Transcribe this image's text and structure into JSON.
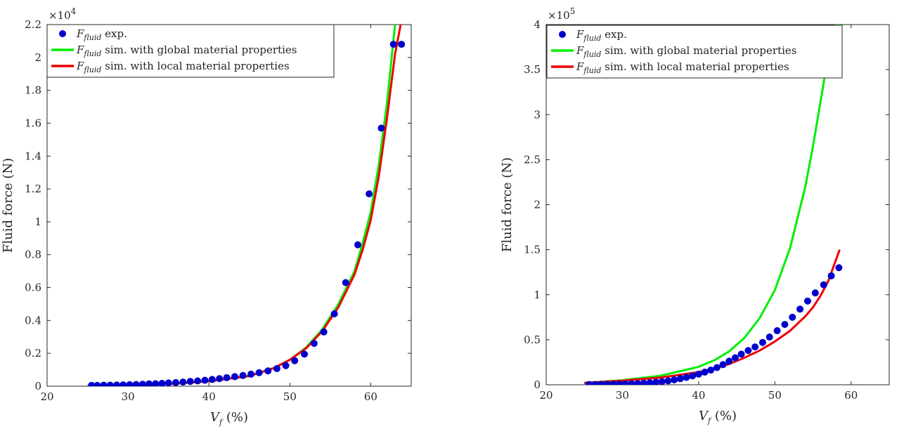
{
  "chart_data": [
    {
      "type": "scatter+line",
      "xlabel": {
        "var": "V",
        "sub": "f",
        "unit": " (%)"
      },
      "ylabel": "Fluid force (N)",
      "xlim": [
        20,
        65
      ],
      "ylim": [
        0,
        2.2
      ],
      "y_exponent": "4",
      "x_ticks": [
        20,
        30,
        40,
        50,
        60
      ],
      "x_tick_labels": [
        "20",
        "30",
        "40",
        "50",
        "60"
      ],
      "y_ticks": [
        0,
        0.2,
        0.4,
        0.6,
        0.8,
        1.0,
        1.2,
        1.4,
        1.6,
        1.8,
        2.0,
        2.2
      ],
      "y_tick_labels": [
        "0",
        "0.2",
        "0.4",
        "0.6",
        "0.8",
        "1",
        "1.2",
        "1.4",
        "1.6",
        "1.8",
        "2",
        "2.2"
      ],
      "grid": false,
      "legend": "top-left",
      "legend_entries": [
        {
          "main": "F",
          "sub": "fluid",
          "suffix": " exp.",
          "marker": "dot",
          "color": "#0000CC"
        },
        {
          "main": "F",
          "sub": "fluid",
          "suffix": " sim. with global material properties",
          "marker": "line",
          "color": "#00EE00"
        },
        {
          "main": "F",
          "sub": "fluid",
          "suffix": " sim. with local material properties",
          "marker": "line",
          "color": "#EE0000"
        }
      ],
      "series": [
        {
          "kind": "points",
          "color": "#0000CC",
          "x": [
            25.5,
            26.2,
            27.0,
            27.8,
            28.6,
            29.4,
            30.2,
            31.0,
            31.8,
            32.6,
            33.4,
            34.2,
            35.0,
            35.9,
            36.8,
            37.7,
            38.6,
            39.5,
            40.4,
            41.3,
            42.2,
            43.2,
            44.2,
            45.2,
            46.2,
            47.3,
            48.4,
            49.5,
            50.6,
            51.8,
            53.0,
            54.2,
            55.5,
            56.9,
            58.4,
            59.8,
            61.3,
            62.8,
            63.8
          ],
          "y": [
            0.005,
            0.005,
            0.006,
            0.006,
            0.007,
            0.008,
            0.009,
            0.01,
            0.012,
            0.014,
            0.015,
            0.017,
            0.02,
            0.022,
            0.025,
            0.029,
            0.032,
            0.036,
            0.041,
            0.046,
            0.052,
            0.058,
            0.065,
            0.073,
            0.082,
            0.093,
            0.107,
            0.125,
            0.155,
            0.195,
            0.26,
            0.33,
            0.44,
            0.63,
            0.86,
            1.17,
            1.57,
            2.08,
            2.08
          ]
        },
        {
          "kind": "line",
          "color": "#00EE00",
          "x": [
            25,
            30,
            35,
            40,
            45,
            48,
            50,
            52,
            54,
            56,
            58,
            59,
            60,
            61,
            62,
            63
          ],
          "y": [
            0.002,
            0.004,
            0.013,
            0.03,
            0.062,
            0.11,
            0.16,
            0.235,
            0.345,
            0.5,
            0.7,
            0.87,
            1.06,
            1.35,
            1.72,
            2.2
          ]
        },
        {
          "kind": "line",
          "color": "#EE0000",
          "x": [
            25,
            30,
            35,
            40,
            45,
            48,
            50,
            52,
            54,
            56,
            58,
            59,
            60,
            61,
            62,
            63,
            63.7
          ],
          "y": [
            0.002,
            0.004,
            0.013,
            0.03,
            0.062,
            0.11,
            0.16,
            0.23,
            0.335,
            0.48,
            0.68,
            0.83,
            1.01,
            1.28,
            1.63,
            2.02,
            2.2
          ]
        }
      ]
    },
    {
      "type": "scatter+line",
      "xlabel": {
        "var": "V",
        "sub": "f",
        "unit": " (%)"
      },
      "ylabel": "Fluid force (N)",
      "xlim": [
        20,
        65
      ],
      "ylim": [
        0,
        4
      ],
      "y_exponent": "5",
      "x_ticks": [
        20,
        30,
        40,
        50,
        60
      ],
      "x_tick_labels": [
        "20",
        "30",
        "40",
        "50",
        "60"
      ],
      "y_ticks": [
        0,
        0.5,
        1.0,
        1.5,
        2.0,
        2.5,
        3.0,
        3.5,
        4.0
      ],
      "y_tick_labels": [
        "0",
        "0.5",
        "1",
        "1.5",
        "2",
        "2.5",
        "3",
        "3.5",
        "4"
      ],
      "grid": false,
      "legend": "top-left",
      "legend_entries": [
        {
          "main": "F",
          "sub": "fluid",
          "suffix": " exp.",
          "marker": "dot",
          "color": "#0000CC"
        },
        {
          "main": "F",
          "sub": "fluid",
          "suffix": " sim. with global material properties",
          "marker": "line",
          "color": "#00EE00"
        },
        {
          "main": "F",
          "sub": "fluid",
          "suffix": " sim. with local material properties",
          "marker": "line",
          "color": "#EE0000"
        }
      ],
      "series": [
        {
          "kind": "points",
          "color": "#0000CC",
          "x": [
            25.6,
            26.4,
            27.2,
            28.0,
            28.8,
            29.6,
            30.4,
            31.2,
            32.0,
            32.8,
            33.6,
            34.4,
            35.2,
            36.0,
            36.8,
            37.6,
            38.4,
            39.2,
            40.0,
            40.8,
            41.6,
            42.4,
            43.2,
            44.0,
            44.8,
            45.6,
            46.5,
            47.4,
            48.4,
            49.3,
            50.3,
            51.3,
            52.3,
            53.3,
            54.3,
            55.3,
            56.4,
            57.4,
            58.4
          ],
          "y": [
            0.003,
            0.003,
            0.004,
            0.005,
            0.006,
            0.008,
            0.009,
            0.011,
            0.014,
            0.018,
            0.022,
            0.028,
            0.035,
            0.044,
            0.055,
            0.068,
            0.082,
            0.099,
            0.118,
            0.14,
            0.163,
            0.191,
            0.224,
            0.262,
            0.3,
            0.34,
            0.38,
            0.42,
            0.47,
            0.53,
            0.6,
            0.67,
            0.75,
            0.84,
            0.93,
            1.02,
            1.11,
            1.21,
            1.3
          ]
        },
        {
          "kind": "line",
          "color": "#00EE00",
          "x": [
            25,
            30,
            35,
            40,
            42,
            44,
            46,
            48,
            50,
            52,
            54,
            55,
            56,
            57,
            58,
            58.8
          ],
          "y": [
            0.02,
            0.05,
            0.1,
            0.2,
            0.27,
            0.37,
            0.52,
            0.74,
            1.05,
            1.52,
            2.2,
            2.65,
            3.15,
            3.65,
            4.0,
            4.0
          ]
        },
        {
          "kind": "line",
          "color": "#EE0000",
          "x": [
            25,
            30,
            35,
            40,
            42,
            44,
            46,
            48,
            50,
            52,
            54,
            55,
            56,
            57,
            58.5
          ],
          "y": [
            0.02,
            0.045,
            0.08,
            0.14,
            0.18,
            0.23,
            0.3,
            0.38,
            0.48,
            0.6,
            0.76,
            0.86,
            0.99,
            1.15,
            1.5
          ]
        }
      ]
    }
  ]
}
